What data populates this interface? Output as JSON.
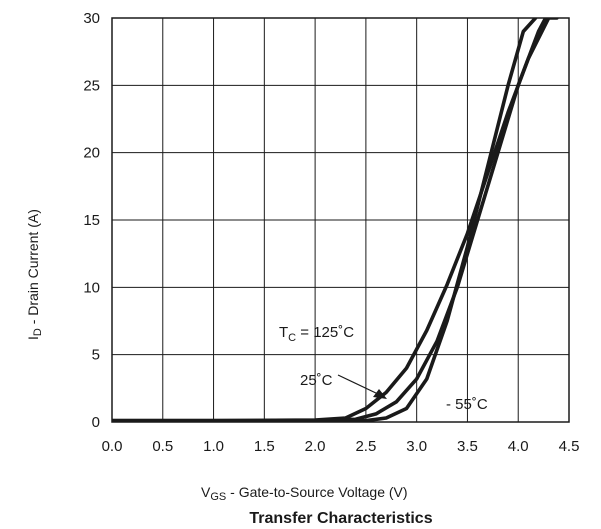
{
  "chart_data": {
    "type": "line",
    "title": "Transfer Characteristics",
    "xlabel": {
      "main": "V",
      "sub": "GS",
      "text": " -   Gate-to-Source Voltage (V)"
    },
    "ylabel": {
      "main": "I",
      "sub": "D",
      "text": " -   Drain Current (A)"
    },
    "xlim": [
      0,
      4.5
    ],
    "ylim": [
      0,
      30
    ],
    "x_ticks": [
      "0.0",
      "0.5",
      "1.0",
      "1.5",
      "2.0",
      "2.5",
      "3.0",
      "3.5",
      "4.0",
      "4.5"
    ],
    "y_ticks": [
      "0",
      "5",
      "10",
      "15",
      "20",
      "25",
      "30"
    ],
    "grid": true,
    "series": [
      {
        "name": "TC = 125°C",
        "x": [
          0.0,
          1.0,
          2.0,
          2.3,
          2.5,
          2.7,
          2.9,
          3.1,
          3.3,
          3.5,
          3.7,
          3.9,
          4.1,
          4.3,
          4.38
        ],
        "y": [
          0.1,
          0.1,
          0.15,
          0.3,
          1.0,
          2.2,
          4.0,
          6.8,
          10.2,
          14.0,
          18.5,
          23.0,
          27.0,
          30.0,
          30.0
        ]
      },
      {
        "name": "25°C",
        "x": [
          0.0,
          1.0,
          2.0,
          2.4,
          2.6,
          2.8,
          3.0,
          3.2,
          3.4,
          3.6,
          3.8,
          4.0,
          4.2,
          4.27
        ],
        "y": [
          0.1,
          0.1,
          0.1,
          0.2,
          0.6,
          1.5,
          3.2,
          6.0,
          10.0,
          15.0,
          20.0,
          25.0,
          29.0,
          30.0
        ]
      },
      {
        "name": "-55°C",
        "x": [
          0.0,
          1.0,
          2.0,
          2.5,
          2.7,
          2.9,
          3.1,
          3.3,
          3.5,
          3.7,
          3.9,
          4.05,
          4.17
        ],
        "y": [
          0.1,
          0.1,
          0.1,
          0.1,
          0.3,
          1.0,
          3.2,
          7.5,
          13.0,
          19.0,
          25.0,
          29.0,
          30.0
        ]
      }
    ],
    "annotations": [
      {
        "main": "T",
        "sub": "C",
        "text": " = 125˚C"
      },
      {
        "text": "25˚C"
      },
      {
        "text": "- 55˚C"
      }
    ]
  }
}
